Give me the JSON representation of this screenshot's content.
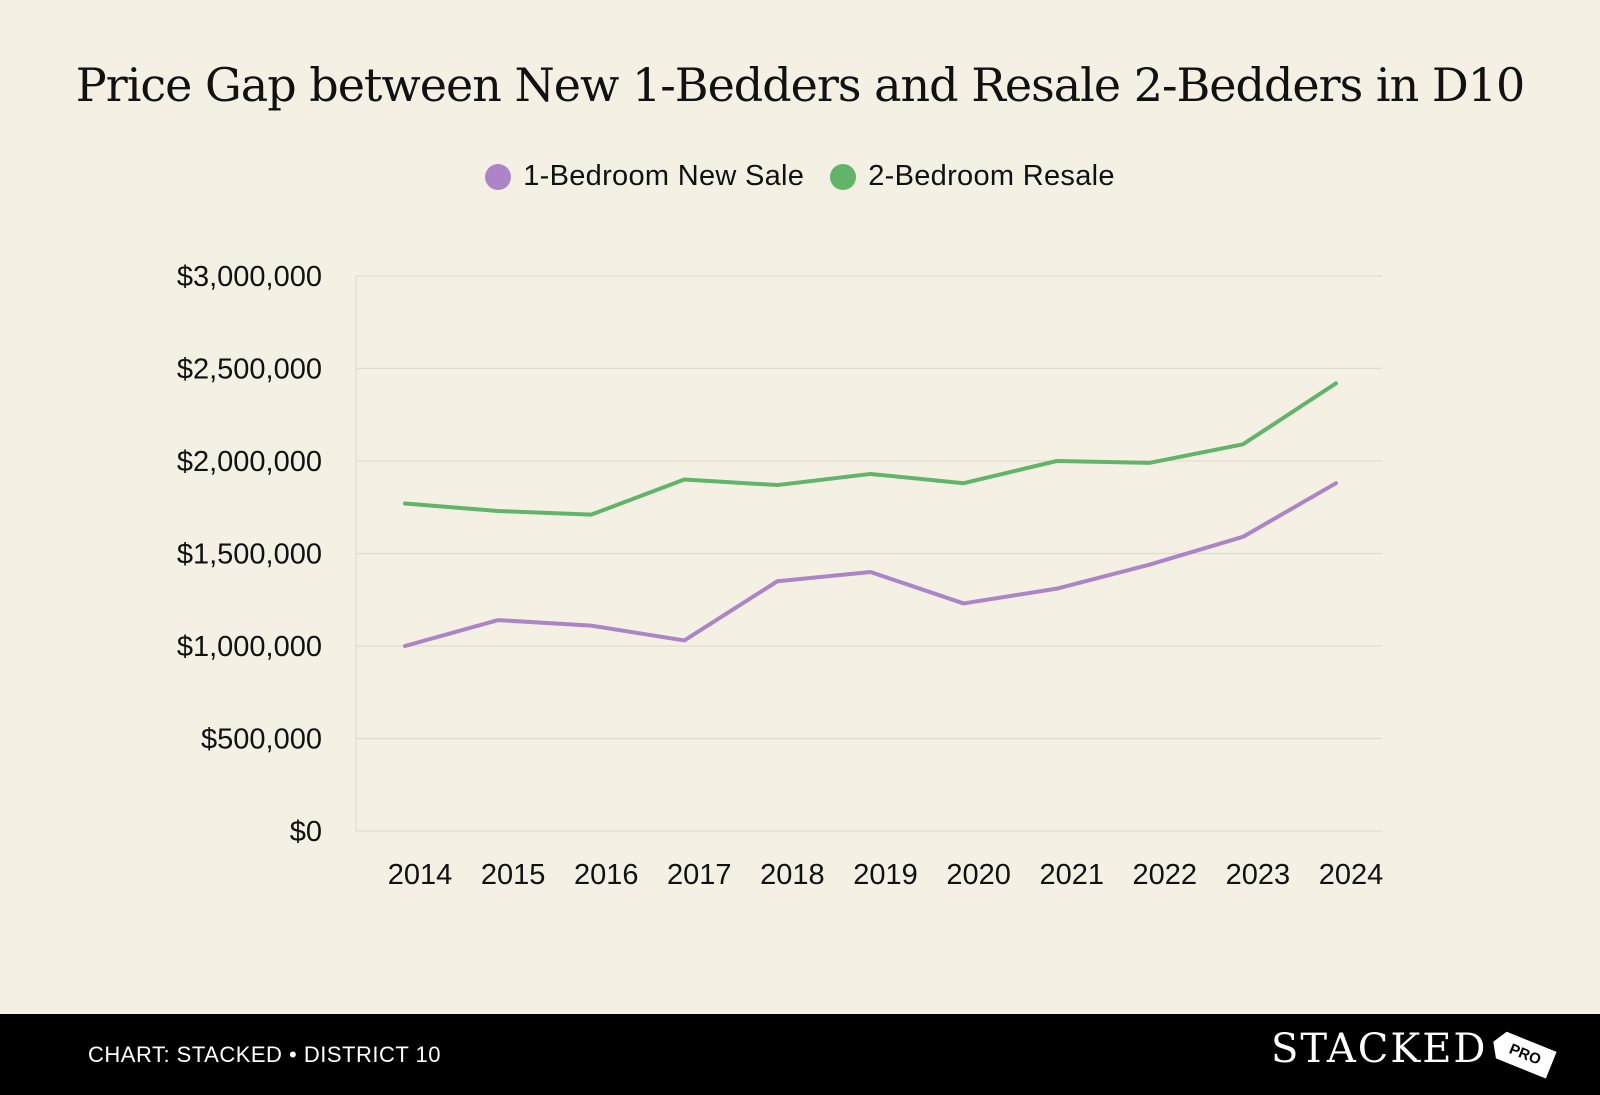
{
  "chart_data": {
    "type": "line",
    "title": "Price Gap between New 1-Bedders and Resale 2-Bedders in D10",
    "categories": [
      "2014",
      "2015",
      "2016",
      "2017",
      "2018",
      "2019",
      "2020",
      "2021",
      "2022",
      "2023",
      "2024"
    ],
    "series": [
      {
        "name": "1-Bedroom New Sale",
        "color": "#ac84c8",
        "values": [
          1000000,
          1140000,
          1110000,
          1030000,
          1350000,
          1400000,
          1230000,
          1310000,
          1440000,
          1590000,
          1880000
        ]
      },
      {
        "name": "2-Bedroom Resale",
        "color": "#62b46a",
        "values": [
          1770000,
          1730000,
          1710000,
          1900000,
          1870000,
          1930000,
          1880000,
          2000000,
          1990000,
          2090000,
          2420000
        ]
      }
    ],
    "y_ticks": [
      {
        "value": 0,
        "label": "$0"
      },
      {
        "value": 500000,
        "label": "$500,000"
      },
      {
        "value": 1000000,
        "label": "$1,000,000"
      },
      {
        "value": 1500000,
        "label": "$1,500,000"
      },
      {
        "value": 2000000,
        "label": "$2,000,000"
      },
      {
        "value": 2500000,
        "label": "$2,500,000"
      },
      {
        "value": 3000000,
        "label": "$3,000,000"
      }
    ],
    "ylim": [
      0,
      3000000
    ],
    "grid": true,
    "legend_position": "top-center"
  },
  "footer": {
    "credit": "CHART: STACKED • DISTRICT 10",
    "brand": "STACKED",
    "brand_tag": "PRO"
  }
}
